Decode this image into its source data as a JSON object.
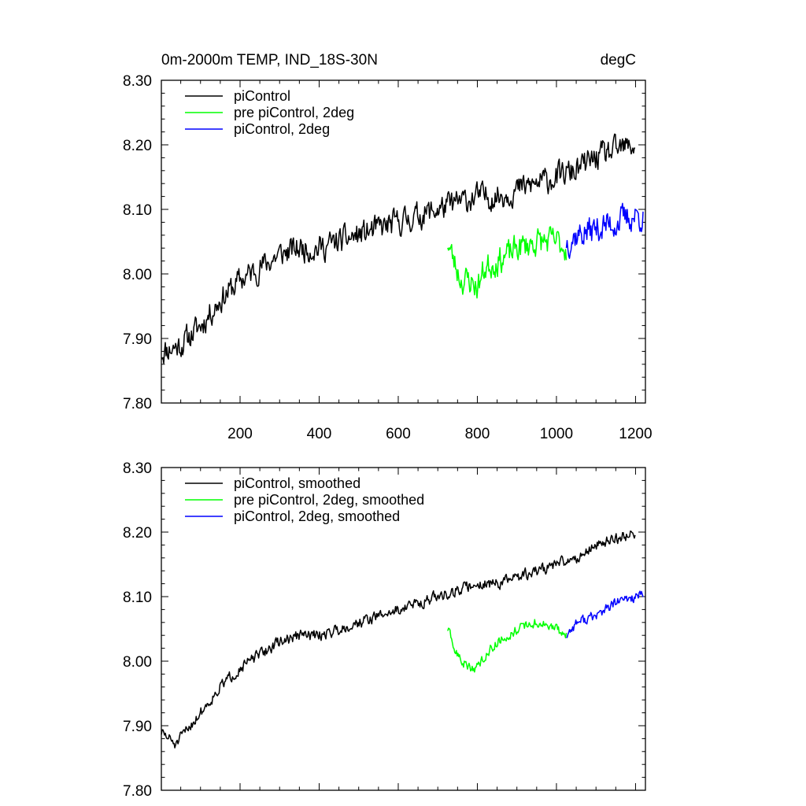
{
  "figure": {
    "title_left": "0m-2000m TEMP, IND_18S-30N",
    "title_right": "degC"
  },
  "chart_data": [
    {
      "type": "line",
      "panel": "top",
      "title": "0m-2000m TEMP, IND_18S-30N",
      "units": "degC",
      "xlabel": "",
      "ylabel": "",
      "xlim": [
        1,
        1225
      ],
      "ylim": [
        7.8,
        8.3
      ],
      "x_ticks": [
        200,
        400,
        600,
        800,
        1000,
        1200
      ],
      "x_tick_labels": [
        "200",
        "400",
        "600",
        "800",
        "1000",
        "1200"
      ],
      "y_ticks": [
        7.8,
        7.9,
        8.0,
        8.1,
        8.2,
        8.3
      ],
      "y_tick_labels": [
        "7.80",
        "7.90",
        "8.00",
        "8.10",
        "8.20",
        "8.30"
      ],
      "legend_position": "top-left",
      "series": [
        {
          "name": "piControl",
          "color": "#000000",
          "noise": 0.032,
          "seed": 11,
          "x": [
            1,
            50,
            100,
            150,
            200,
            250,
            300,
            350,
            400,
            450,
            500,
            550,
            600,
            650,
            700,
            750,
            800,
            850,
            900,
            950,
            1000,
            1050,
            1100,
            1150,
            1200
          ],
          "y": [
            7.88,
            7.89,
            7.92,
            7.96,
            7.99,
            8.01,
            8.03,
            8.04,
            8.04,
            8.05,
            8.06,
            8.07,
            8.08,
            8.09,
            8.1,
            8.11,
            8.12,
            8.12,
            8.13,
            8.14,
            8.15,
            8.16,
            8.18,
            8.19,
            8.2
          ]
        },
        {
          "name": "pre piControl, 2deg",
          "color": "#00ff00",
          "noise": 0.034,
          "seed": 23,
          "x": [
            725,
            740,
            760,
            780,
            800,
            820,
            850,
            880,
            900,
            950,
            1000,
            1025
          ],
          "y": [
            8.05,
            8.02,
            7.99,
            7.99,
            7.98,
            8.01,
            8.02,
            8.03,
            8.04,
            8.05,
            8.05,
            8.04
          ]
        },
        {
          "name": "piControl, 2deg",
          "color": "#0000ff",
          "noise": 0.036,
          "seed": 37,
          "x": [
            1025,
            1050,
            1100,
            1150,
            1200,
            1220
          ],
          "y": [
            8.05,
            8.06,
            8.07,
            8.08,
            8.09,
            8.09
          ]
        }
      ]
    },
    {
      "type": "line",
      "panel": "bottom",
      "title": "",
      "xlabel": "",
      "ylabel": "",
      "xlim": [
        1,
        1225
      ],
      "ylim": [
        7.8,
        8.3
      ],
      "x_ticks": [
        200,
        400,
        600,
        800,
        1000,
        1200
      ],
      "x_tick_labels": [],
      "y_ticks": [
        7.8,
        7.9,
        8.0,
        8.1,
        8.2,
        8.3
      ],
      "y_tick_labels": [
        "7.80",
        "7.90",
        "8.00",
        "8.10",
        "8.20",
        "8.30"
      ],
      "legend_position": "top-left",
      "series": [
        {
          "name": "piControl, smoothed",
          "color": "#000000",
          "noise": 0.014,
          "seed": 51,
          "x": [
            1,
            20,
            40,
            60,
            100,
            150,
            200,
            250,
            300,
            350,
            400,
            450,
            500,
            550,
            600,
            650,
            700,
            750,
            800,
            850,
            900,
            950,
            1000,
            1050,
            1100,
            1150,
            1200
          ],
          "y": [
            7.89,
            7.88,
            7.87,
            7.89,
            7.92,
            7.96,
            7.99,
            8.01,
            8.03,
            8.04,
            8.04,
            8.05,
            8.06,
            8.07,
            8.08,
            8.09,
            8.1,
            8.11,
            8.12,
            8.12,
            8.13,
            8.14,
            8.15,
            8.16,
            8.18,
            8.19,
            8.2
          ]
        },
        {
          "name": "pre piControl, 2deg, smoothed",
          "color": "#00ff00",
          "noise": 0.012,
          "seed": 63,
          "x": [
            725,
            740,
            760,
            780,
            800,
            820,
            850,
            880,
            900,
            950,
            1000,
            1025
          ],
          "y": [
            8.05,
            8.02,
            8.0,
            7.99,
            7.99,
            8.01,
            8.03,
            8.04,
            8.05,
            8.06,
            8.05,
            8.04
          ]
        },
        {
          "name": "piControl, 2deg, smoothed",
          "color": "#0000ff",
          "noise": 0.013,
          "seed": 77,
          "x": [
            1025,
            1050,
            1100,
            1150,
            1200,
            1220
          ],
          "y": [
            8.04,
            8.06,
            8.07,
            8.09,
            8.1,
            8.1
          ]
        }
      ]
    }
  ]
}
